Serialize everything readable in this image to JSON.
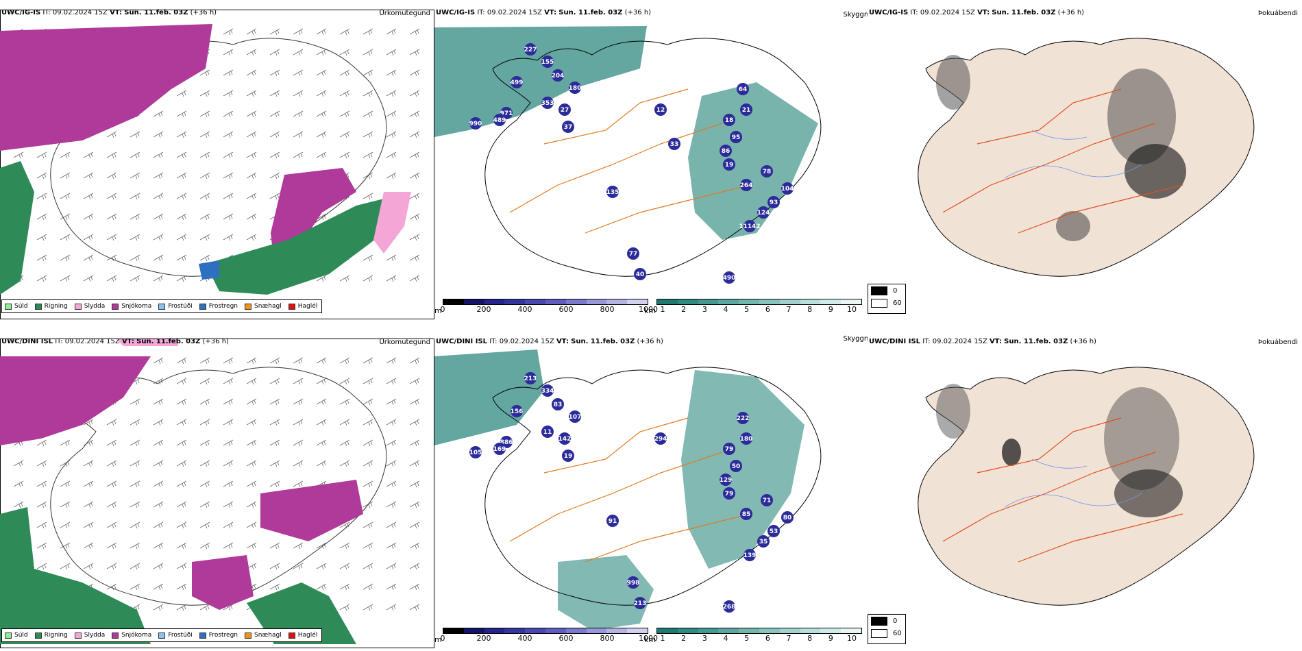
{
  "rows": [
    {
      "model": "UWC/IG-IS",
      "it_label": "IT:",
      "it_value": "09.02.2024 15Z",
      "vt_label": "VT:",
      "vt_value": "Sun. 11.feb. 03Z",
      "lead": "(+36 h)",
      "panel1_title": "Úrkomutegund",
      "panel2_title": "Skyggni",
      "panel3_title": "Þokuábendi",
      "values": [
        "227",
        "155",
        "204",
        "180",
        "499",
        "971",
        "489",
        "990",
        "353",
        "27",
        "37",
        "64",
        "21",
        "18",
        "95",
        "86",
        "19",
        "264",
        "78",
        "104",
        "93",
        "124",
        "11142",
        "135",
        "77",
        "40",
        "490",
        "12",
        "33"
      ]
    },
    {
      "model": "UWC/DINI ISL",
      "it_label": "IT:",
      "it_value": "09.02.2024 15Z",
      "vt_label": "VT:",
      "vt_value": "Sun. 11.feb. 03Z",
      "lead": "(+36 h)",
      "panel1_title": "Úrkomutegund",
      "panel2_title": "Skyggni",
      "panel3_title": "Þokuábendi",
      "values": [
        "213",
        "334",
        "83",
        "107",
        "156",
        "886",
        "169",
        "105",
        "11",
        "142",
        "19",
        "222",
        "180",
        "79",
        "50",
        "129",
        "79",
        "85",
        "71",
        "80",
        "53",
        "35",
        "139",
        "91",
        "998",
        "213",
        "268",
        "294"
      ]
    }
  ],
  "precip_legend": [
    {
      "label": "Súld",
      "color": "#90ee90"
    },
    {
      "label": "Rigning",
      "color": "#2e8b57"
    },
    {
      "label": "Slydda",
      "color": "#f4a6d7"
    },
    {
      "label": "Snjókoma",
      "color": "#b03a9a"
    },
    {
      "label": "Frostúði",
      "color": "#8fc1f0"
    },
    {
      "label": "Frostregn",
      "color": "#2f6fc0"
    },
    {
      "label": "Snæhagl",
      "color": "#f0901e"
    },
    {
      "label": "Haglél",
      "color": "#e01010"
    }
  ],
  "vis_m": {
    "unit": "m",
    "ticks": [
      "0",
      "200",
      "400",
      "600",
      "800",
      "1000"
    ],
    "colors": [
      "#000000",
      "#141466",
      "#24248a",
      "#3535a0",
      "#4848b0",
      "#5e5ec0",
      "#7a7acc",
      "#9898d8",
      "#b4b4e4",
      "#d0d0f0"
    ]
  },
  "vis_km": {
    "unit": "km",
    "ticks": [
      "1",
      "2",
      "3",
      "4",
      "5",
      "6",
      "7",
      "8",
      "9",
      "10"
    ],
    "colors": [
      "#1d7a70",
      "#2f8a80",
      "#44988f",
      "#5aa79f",
      "#70b5ae",
      "#88c3bd",
      "#a0d1cc",
      "#b8dfdb",
      "#d0ece9",
      "#e8f6f4"
    ]
  },
  "fog_legend": [
    {
      "label": "0",
      "color": "#000000"
    },
    {
      "label": "60",
      "color": "#ffffff"
    }
  ],
  "colors": {
    "snow": "#b03a9a",
    "rain": "#2e8b57",
    "sleet": "#f4a6d7",
    "vis_teal": "#2f8a80",
    "vis_dark": "#2b2b9a",
    "roads": "#e07a20",
    "land": "#f1e2d6",
    "rivers": "#7090f0"
  }
}
